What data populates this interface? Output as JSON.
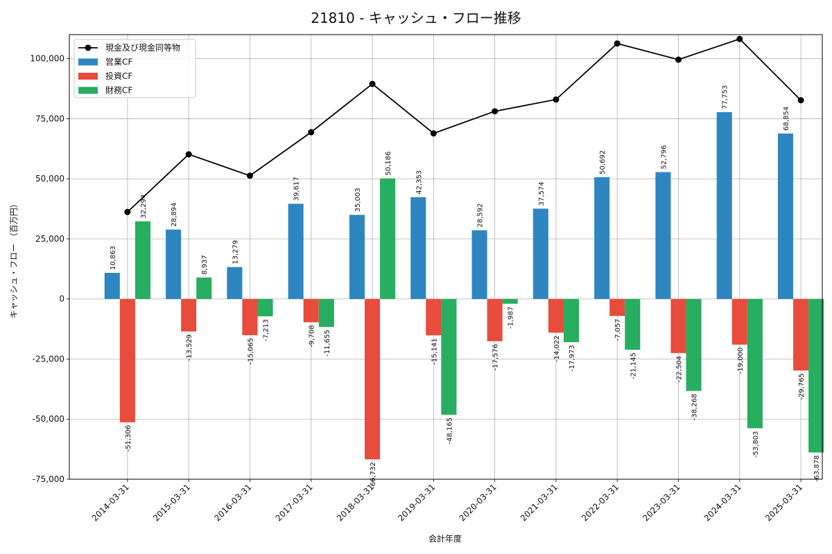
{
  "chart_data": {
    "type": "bar",
    "title": "21810 - キャッシュ・フロー推移",
    "xlabel": "会計年度",
    "ylabel": "キャッシュ・フロー （百万円）",
    "ylim": [
      -75000,
      110000
    ],
    "yticks": [
      -75000,
      -50000,
      -25000,
      0,
      25000,
      50000,
      75000,
      100000
    ],
    "ytick_labels": [
      "-75,000",
      "-50,000",
      "-25,000",
      "0",
      "25,000",
      "50,000",
      "75,000",
      "100,000"
    ],
    "grid": true,
    "legend_position": "top-left",
    "categories": [
      "2014-03-31",
      "2015-03-31",
      "2016-03-31",
      "2017-03-31",
      "2018-03-31",
      "2019-03-31",
      "2020-03-31",
      "2021-03-31",
      "2022-03-31",
      "2023-03-31",
      "2024-03-31",
      "2025-03-31"
    ],
    "series": [
      {
        "name": "営業CF",
        "kind": "bar",
        "color": "#2e86c1",
        "values": [
          10863,
          28894,
          13279,
          39617,
          35003,
          42353,
          28592,
          37574,
          50692,
          52796,
          77753,
          68854
        ],
        "labels": [
          "10,863",
          "28,894",
          "13,279",
          "39,617",
          "35,003",
          "42,353",
          "28,592",
          "37,574",
          "50,692",
          "52,796",
          "77,753",
          "68,854"
        ]
      },
      {
        "name": "投資CF",
        "kind": "bar",
        "color": "#e74c3c",
        "values": [
          -51306,
          -13529,
          -15065,
          -9708,
          -66732,
          -15141,
          -17576,
          -14022,
          -7057,
          -22504,
          -19000,
          -29765
        ],
        "labels": [
          "-51,306",
          "-13,529",
          "-15,065",
          "-9,708",
          "-66,732",
          "-15,141",
          "-17,576",
          "-14,022",
          "-7,057",
          "-22,504",
          "-19,000",
          "-29,765"
        ]
      },
      {
        "name": "財務CF",
        "kind": "bar",
        "color": "#27ae60",
        "values": [
          32294,
          8937,
          -7213,
          -11655,
          50186,
          -48165,
          -1987,
          -17973,
          -21145,
          -38268,
          -53803,
          -63878
        ],
        "labels": [
          "32,294",
          "8,937",
          "-7,213",
          "-11,655",
          "50,186",
          "-48,165",
          "-1,987",
          "-17,973",
          "-21,145",
          "-38,268",
          "-53,803",
          "-63,878"
        ]
      },
      {
        "name": "現金及び現金同等物",
        "kind": "line",
        "color": "#000000",
        "values": [
          36200,
          60200,
          51300,
          69400,
          89500,
          68900,
          78100,
          83000,
          106300,
          99600,
          108200,
          82700
        ]
      }
    ]
  }
}
